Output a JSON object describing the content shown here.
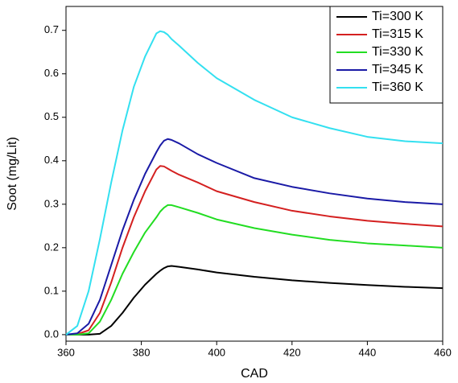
{
  "chart_data": {
    "type": "line",
    "x_label": "CAD",
    "y_label": "Soot (mg/Lit)",
    "x": [
      360,
      363,
      366,
      369,
      372,
      375,
      378,
      381,
      384,
      385,
      386,
      387,
      388,
      390,
      395,
      400,
      410,
      420,
      430,
      440,
      450,
      460
    ],
    "series": [
      {
        "name": "Ti=300 K",
        "color": "#000000",
        "values": [
          0,
          0,
          0,
          0.002,
          0.02,
          0.05,
          0.085,
          0.115,
          0.14,
          0.147,
          0.153,
          0.157,
          0.158,
          0.156,
          0.15,
          0.143,
          0.133,
          0.125,
          0.119,
          0.114,
          0.11,
          0.107
        ]
      },
      {
        "name": "Ti=315 K",
        "color": "#d42020",
        "values": [
          0,
          0.001,
          0.01,
          0.05,
          0.12,
          0.2,
          0.27,
          0.33,
          0.38,
          0.388,
          0.387,
          0.382,
          0.377,
          0.368,
          0.35,
          0.33,
          0.305,
          0.285,
          0.272,
          0.262,
          0.255,
          0.249
        ]
      },
      {
        "name": "Ti=330 K",
        "color": "#22dd22",
        "values": [
          0,
          0,
          0.003,
          0.03,
          0.08,
          0.14,
          0.19,
          0.235,
          0.27,
          0.283,
          0.292,
          0.298,
          0.298,
          0.293,
          0.28,
          0.265,
          0.245,
          0.23,
          0.218,
          0.21,
          0.205,
          0.2
        ]
      },
      {
        "name": "Ti=345 K",
        "color": "#1a1aa6",
        "values": [
          0,
          0.003,
          0.025,
          0.08,
          0.16,
          0.24,
          0.31,
          0.37,
          0.42,
          0.435,
          0.446,
          0.45,
          0.448,
          0.44,
          0.415,
          0.395,
          0.36,
          0.34,
          0.325,
          0.313,
          0.305,
          0.3
        ]
      },
      {
        "name": "Ti=360 K",
        "color": "#33e0f0",
        "values": [
          0,
          0.02,
          0.1,
          0.22,
          0.35,
          0.47,
          0.57,
          0.64,
          0.693,
          0.698,
          0.696,
          0.69,
          0.68,
          0.665,
          0.625,
          0.59,
          0.54,
          0.5,
          0.475,
          0.455,
          0.445,
          0.44
        ]
      }
    ],
    "xlim": [
      360,
      460
    ],
    "xticks": [
      360,
      380,
      400,
      420,
      440,
      460
    ],
    "ylim": [
      -0.015,
      0.755
    ],
    "yticks": [
      {
        "value": 0,
        "label": "0.0"
      },
      0.1,
      0.2,
      0.3,
      0.4,
      0.5,
      0.6,
      0.7
    ],
    "legend": "upper right"
  }
}
